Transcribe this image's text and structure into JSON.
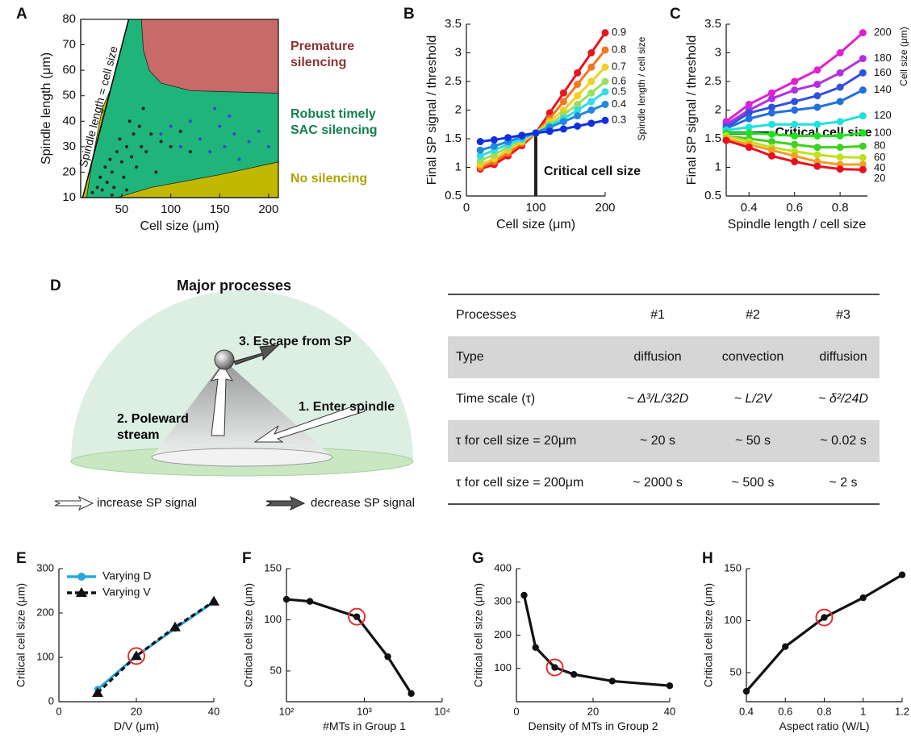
{
  "panel_labels": [
    "A",
    "B",
    "C",
    "D",
    "E",
    "F",
    "G",
    "H"
  ],
  "chart_data": [
    {
      "type": "region",
      "x_label": "Cell size (μm)",
      "y_label": "Spindle length (μm)",
      "xlim": [
        8,
        210
      ],
      "ylim": [
        10,
        80
      ],
      "xticks": [
        50,
        100,
        150,
        200
      ],
      "yticks": [
        10,
        20,
        30,
        40,
        50,
        60,
        70,
        80
      ],
      "box": true,
      "regions": [
        {
          "name": "Robust timely SAC silencing",
          "color": "#1fb57a",
          "label_color": "#138050",
          "polygons": [
            {
              "x": [
                10,
                57,
                210,
                210
              ],
              "y": [
                10,
                80,
                80,
                10
              ]
            }
          ]
        },
        {
          "name": "Premature silencing",
          "color": "#c96a68",
          "label_color": "#8b3232",
          "polygons": [
            {
              "x": [
                70,
                72,
                78,
                90,
                120,
                210,
                210
              ],
              "y": [
                80,
                68,
                60,
                55,
                52,
                51,
                80
              ]
            }
          ]
        },
        {
          "name": "No silencing",
          "color": "#c2b800",
          "label_color": "#b0a200",
          "polygons": [
            {
              "x": [
                10,
                38,
                30,
                20,
                14
              ],
              "y": [
                10,
                52,
                45,
                25,
                10
              ]
            },
            {
              "x": [
                45,
                80,
                150,
                210,
                210
              ],
              "y": [
                10,
                14,
                19,
                24,
                10
              ]
            }
          ]
        }
      ],
      "ref_line": {
        "label": "Spindle length = cell size",
        "x": [
          10,
          57
        ],
        "y": [
          10,
          80
        ],
        "color": "#000"
      },
      "series": [
        {
          "color": "#222222",
          "x": [
            20,
            25,
            28,
            30,
            33,
            35,
            38,
            40,
            42,
            45,
            48,
            50,
            52,
            55,
            58,
            60,
            62,
            65,
            68,
            70,
            72,
            75,
            80,
            85,
            90,
            100,
            110,
            120,
            40,
            55
          ],
          "y": [
            12,
            14,
            18,
            13,
            22,
            16,
            25,
            20,
            14,
            28,
            33,
            24,
            18,
            30,
            40,
            26,
            35,
            22,
            38,
            30,
            45,
            28,
            35,
            20,
            32,
            30,
            36,
            28,
            11,
            13
          ]
        },
        {
          "color": "#3048d8",
          "x": [
            90,
            100,
            110,
            120,
            130,
            140,
            150,
            155,
            160,
            165,
            170,
            180,
            190,
            200,
            145
          ],
          "y": [
            35,
            38,
            30,
            40,
            33,
            28,
            38,
            30,
            42,
            35,
            25,
            32,
            36,
            30,
            45
          ]
        }
      ]
    },
    {
      "type": "line",
      "x_label": "Cell size (μm)",
      "y_label": "Final SP signal / threshold",
      "legend_title": "Spindle length / cell size",
      "xlim": [
        0,
        200
      ],
      "ylim": [
        0.5,
        3.5
      ],
      "xticks": [
        0,
        100,
        200
      ],
      "yticks": [
        0.5,
        1,
        1.5,
        2,
        2.5,
        3,
        3.5
      ],
      "labels_at_end": true,
      "x": [
        20,
        40,
        60,
        80,
        100,
        120,
        140,
        160,
        180,
        200
      ],
      "ref_line": {
        "label": "Critical cell size",
        "x": [
          100,
          100
        ],
        "y": [
          0.5,
          1.6
        ],
        "color": "#222"
      },
      "series": [
        {
          "name": "0.9",
          "color": "#e8141e",
          "values": [
            0.97,
            1.05,
            1.2,
            1.38,
            1.6,
            1.95,
            2.3,
            2.65,
            3.0,
            3.35
          ]
        },
        {
          "name": "0.8",
          "color": "#f07820",
          "values": [
            1.0,
            1.1,
            1.25,
            1.42,
            1.6,
            1.85,
            2.15,
            2.45,
            2.75,
            3.05
          ]
        },
        {
          "name": "0.7",
          "color": "#f2cf20",
          "values": [
            1.05,
            1.15,
            1.3,
            1.45,
            1.6,
            1.8,
            2.0,
            2.25,
            2.5,
            2.75
          ]
        },
        {
          "name": "0.6",
          "color": "#98e060",
          "values": [
            1.12,
            1.22,
            1.35,
            1.48,
            1.6,
            1.75,
            1.92,
            2.1,
            2.3,
            2.5
          ]
        },
        {
          "name": "0.5",
          "color": "#30dce8",
          "values": [
            1.2,
            1.3,
            1.4,
            1.5,
            1.6,
            1.72,
            1.85,
            2.0,
            2.15,
            2.32
          ]
        },
        {
          "name": "0.4",
          "color": "#2088e0",
          "values": [
            1.3,
            1.37,
            1.45,
            1.53,
            1.6,
            1.7,
            1.8,
            1.9,
            2.0,
            2.1
          ]
        },
        {
          "name": "0.3",
          "color": "#1030e0",
          "values": [
            1.45,
            1.48,
            1.52,
            1.56,
            1.6,
            1.63,
            1.67,
            1.72,
            1.77,
            1.82
          ]
        }
      ]
    },
    {
      "type": "line",
      "x_label": "Spindle length / cell size",
      "y_label": "Final SP signal / threshold",
      "legend_title": "Cell size (μm)",
      "xlim": [
        0.3,
        0.92
      ],
      "ylim": [
        0.5,
        3.5
      ],
      "xticks": [
        0.4,
        0.6,
        0.8
      ],
      "yticks": [
        0.5,
        1,
        1.5,
        2,
        2.5,
        3,
        3.5
      ],
      "labels_at_end": true,
      "x": [
        0.3,
        0.4,
        0.5,
        0.6,
        0.7,
        0.8,
        0.9
      ],
      "ref_line": {
        "label": "Critical cell size",
        "x": [
          0.3,
          0.5
        ],
        "y": [
          1.6,
          1.6
        ],
        "color": "#111"
      },
      "series": [
        {
          "name": "200",
          "color": "#e020d0",
          "values": [
            1.8,
            2.1,
            2.3,
            2.5,
            2.7,
            3.0,
            3.35
          ]
        },
        {
          "name": "180",
          "color": "#b030e0",
          "values": [
            1.75,
            2.0,
            2.2,
            2.35,
            2.45,
            2.65,
            2.9
          ]
        },
        {
          "name": "160",
          "color": "#3050e0",
          "values": [
            1.7,
            1.95,
            2.05,
            2.15,
            2.25,
            2.4,
            2.65
          ]
        },
        {
          "name": "140",
          "color": "#2070e0",
          "values": [
            1.68,
            1.85,
            1.95,
            2.0,
            2.05,
            2.15,
            2.35
          ]
        },
        {
          "name": "120",
          "color": "#20e0e0",
          "values": [
            1.65,
            1.7,
            1.75,
            1.75,
            1.75,
            1.8,
            1.9
          ]
        },
        {
          "name": "100",
          "color": "#20e020",
          "values": [
            1.6,
            1.6,
            1.58,
            1.55,
            1.55,
            1.55,
            1.6
          ]
        },
        {
          "name": "80",
          "color": "#40d020",
          "values": [
            1.55,
            1.5,
            1.45,
            1.4,
            1.35,
            1.35,
            1.37
          ]
        },
        {
          "name": "60",
          "color": "#c0e020",
          "values": [
            1.55,
            1.45,
            1.35,
            1.28,
            1.22,
            1.18,
            1.17
          ]
        },
        {
          "name": "40",
          "color": "#f0a020",
          "values": [
            1.5,
            1.4,
            1.3,
            1.2,
            1.1,
            1.05,
            1.05
          ]
        },
        {
          "name": "20",
          "color": "#e81020",
          "values": [
            1.47,
            1.35,
            1.2,
            1.1,
            1.02,
            0.97,
            0.96
          ]
        }
      ]
    },
    {
      "type": "line",
      "x_label": "D/V (μm)",
      "y_label": "Critical cell size (μm)",
      "xlim": [
        0,
        40
      ],
      "ylim": [
        0,
        300
      ],
      "xticks": [
        0,
        20,
        40
      ],
      "yticks": [
        0,
        100,
        200,
        300
      ],
      "legend": "top-left",
      "x": [
        10,
        20,
        30,
        40
      ],
      "highlight": {
        "series": 0,
        "index": 1,
        "color": "#e03030"
      },
      "series": [
        {
          "name": "Varying D",
          "color": "#29a8e0",
          "marker": "circle",
          "values": [
            28,
            103,
            165,
            225
          ]
        },
        {
          "name": "Varying V",
          "color": "#111111",
          "marker": "triangle",
          "dash": true,
          "values": [
            20,
            103,
            168,
            226
          ]
        }
      ]
    },
    {
      "type": "line",
      "x_label": "#MTs in Group 1",
      "y_label": "Critical cell size (μm)",
      "xlim": [
        100,
        10000
      ],
      "xlog": true,
      "ylim": [
        20,
        150
      ],
      "xticks": [
        {
          "value": 100,
          "label": "10²"
        },
        {
          "value": 1000,
          "label": "10³"
        },
        {
          "value": 10000,
          "label": "10⁴"
        }
      ],
      "yticks": [
        50,
        100,
        150
      ],
      "x": [
        100,
        200,
        800,
        2000,
        4000
      ],
      "highlight": {
        "series": 0,
        "index": 2,
        "color": "#e03030"
      },
      "series": [
        {
          "color": "#111111",
          "marker": "circle",
          "values": [
            120,
            118,
            103,
            64,
            28
          ]
        }
      ]
    },
    {
      "type": "line",
      "x_label": "Density of MTs in Group 2",
      "y_label": "Critical cell size (μm)",
      "xlim": [
        0,
        40
      ],
      "ylim": [
        0,
        400
      ],
      "xticks": [
        0,
        20,
        40
      ],
      "yticks": [
        100,
        200,
        300,
        400
      ],
      "x": [
        2,
        5,
        10,
        15,
        25,
        40
      ],
      "highlight": {
        "series": 0,
        "index": 2,
        "color": "#e03030"
      },
      "series": [
        {
          "color": "#111111",
          "marker": "circle",
          "values": [
            320,
            163,
            103,
            82,
            62,
            48
          ]
        }
      ]
    },
    {
      "type": "line",
      "x_label": "Aspect ratio (W/L)",
      "y_label": "Critical cell size (μm)",
      "xlim": [
        0.4,
        1.2
      ],
      "ylim": [
        22,
        150
      ],
      "xticks": [
        0.4,
        0.6,
        0.8,
        1,
        1.2
      ],
      "yticks": [
        50,
        100,
        150
      ],
      "x": [
        0.4,
        0.6,
        0.8,
        1.0,
        1.2
      ],
      "highlight": {
        "series": 0,
        "index": 2,
        "color": "#e03030"
      },
      "series": [
        {
          "color": "#111111",
          "marker": "circle",
          "values": [
            32,
            75,
            103,
            122,
            144
          ]
        }
      ]
    }
  ],
  "diagram": {
    "title": "Major processes",
    "labels": [
      "3. Escape from SP",
      "2. Poleward stream",
      "1. Enter spindle"
    ],
    "legend": [
      "increase SP signal",
      "decrease SP signal"
    ]
  },
  "table": {
    "header": [
      "Processes",
      "#1",
      "#2",
      "#3"
    ],
    "rows": [
      [
        "Type",
        "diffusion",
        "convection",
        "diffusion"
      ],
      [
        "Time scale (τ)",
        "~ Δ³/L/32D",
        "~ L/2V",
        "~ δ²/24D"
      ],
      [
        "τ for cell size = 20μm",
        "~ 20 s",
        "~ 50 s",
        "~ 0.02 s"
      ],
      [
        "τ for cell size = 200μm",
        "~ 2000 s",
        "~ 500 s",
        "~ 2 s"
      ]
    ]
  }
}
